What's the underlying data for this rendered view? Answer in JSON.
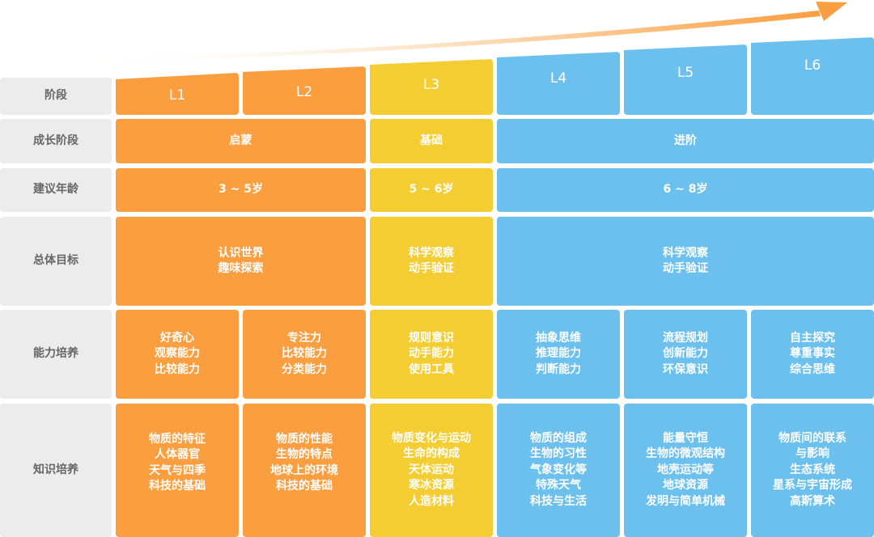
{
  "colors": {
    "orange": "#fb9e3f",
    "yellow": "#f3cd32",
    "blue": "#6cc0ee",
    "label_bg": "#ececec",
    "label_text": "#666666"
  },
  "icons": {
    "top_arrow": "growth-arrow-icon"
  },
  "row_labels": [
    "阶段",
    "成长阶段",
    "建议年龄",
    "总体目标",
    "能力培养",
    "知识培养"
  ],
  "levels": [
    "L1",
    "L2",
    "L3",
    "L4",
    "L5",
    "L6"
  ],
  "growth_stages": [
    "启蒙",
    "基础",
    "进阶"
  ],
  "ages": [
    "3 ~ 5岁",
    "5 ~ 6岁",
    "6 ~ 8岁"
  ],
  "goals": [
    [
      "认识世界",
      "趣味探索"
    ],
    [
      "科学观察",
      "动手验证"
    ],
    [
      "科学观察",
      "动手验证"
    ]
  ],
  "abilities": [
    [
      "好奇心",
      "观察能力",
      "比较能力"
    ],
    [
      "专注力",
      "比较能力",
      "分类能力"
    ],
    [
      "规则意识",
      "动手能力",
      "使用工具"
    ],
    [
      "抽象思维",
      "推理能力",
      "判断能力"
    ],
    [
      "流程规划",
      "创新能力",
      "环保意识"
    ],
    [
      "自主探究",
      "尊重事实",
      "综合思维"
    ]
  ],
  "knowledge": [
    [
      "物质的特征",
      "人体器官",
      "天气与四季",
      "科技的基础"
    ],
    [
      "物质的性能",
      "生物的特点",
      "地球上的环境",
      "科技的基础"
    ],
    [
      "物质变化与运动",
      "生命的构成",
      "天体运动",
      "寒冰资源",
      "人造材料"
    ],
    [
      "物质的组成",
      "生物的习性",
      "气象变化等",
      "特殊天气",
      "科技与生活"
    ],
    [
      "能量守恒",
      "生物的微观结构",
      "地壳运动等",
      "地球资源",
      "发明与简单机械"
    ],
    [
      "物质间的联系",
      "与影响",
      "生态系统",
      "星系与宇宙形成",
      "高斯算术"
    ]
  ]
}
